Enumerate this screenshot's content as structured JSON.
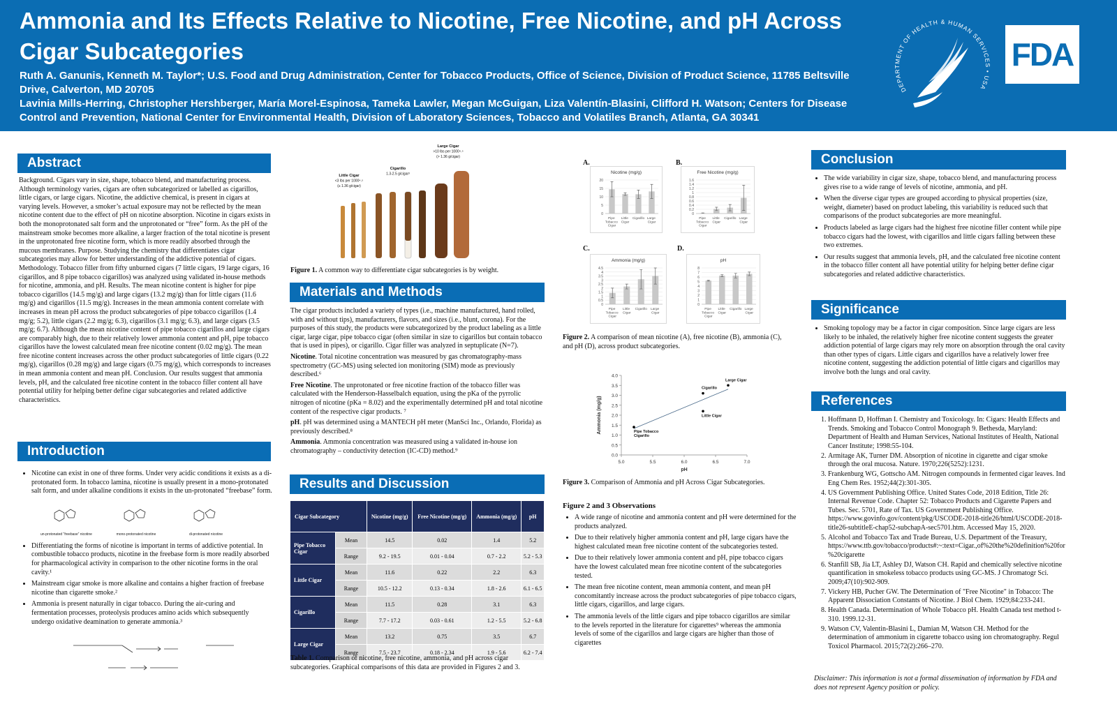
{
  "header": {
    "title": "Ammonia and Its Effects Relative to Nicotine, Free Nicotine, and pH Across Cigar Subcategories",
    "authors": [
      "Ruth A. Ganunis, Kenneth M. Taylor*; U.S. Food and Drug Administration, Center for Tobacco Products, Office of Science, Division of Product Science, 11785 Beltsville Drive, Calverton, MD 20705",
      "Lavinia Mills-Herring, Christopher Hershberger, María Morel-Espinosa, Tameka Lawler, Megan McGuigan, Liza Valentín-Blasini, Clifford H. Watson; Centers for Disease Control and Prevention, National Center for Environmental Health, Division of Laboratory Sciences, Tobacco and Volatiles Branch, Atlanta, GA 30341"
    ],
    "seal_text": "DEPARTMENT OF HEALTH & HUMAN SERVICES • USA",
    "logo_text": "FDA"
  },
  "abstract": {
    "heading": "Abstract",
    "text": "Background. Cigars vary in size, shape, tobacco blend, and manufacturing process. Although terminology varies, cigars are often subcategorized or labelled as cigarillos, little cigars, or large cigars. Nicotine, the addictive chemical, is present in cigars at varying levels. However, a smoker’s actual exposure may not be reflected by the mean nicotine content due to the effect of pH on nicotine absorption. Nicotine in cigars exists in both the monoprotonated salt form and the unprotonated or “free” form. As the pH of the mainstream smoke becomes more alkaline, a larger fraction of the total nicotine is present in the unprotonated free nicotine form, which is more readily absorbed through the mucous membranes. Purpose. Studying the chemistry that differentiates cigar subcategories may allow for better understanding of the addictive potential of cigars. Methodology. Tobacco filler from fifty unburned cigars (7 little cigars, 19 large cigars, 16 cigarillos, and 8 pipe tobacco cigarillos) was analyzed using validated in-house methods for nicotine, ammonia, and pH. Results. The mean nicotine content is higher for pipe tobacco cigarillos (14.5 mg/g) and large cigars (13.2 mg/g) than for little cigars (11.6 mg/g) and cigarillos (11.5 mg/g). Increases in the mean ammonia content correlate with increases in mean pH across the product subcategories of pipe tobacco cigarillos (1.4 mg/g; 5.2), little cigars (2.2 mg/g; 6.3), cigarillos (3.1 mg/g; 6.3), and large cigars (3.5 mg/g; 6.7). Although the mean nicotine content of pipe tobacco cigarillos and large cigars are comparably high, due to their relatively lower ammonia content and pH, pipe tobacco cigarillos have the lowest calculated mean free nicotine content (0.02 mg/g). The mean free nicotine content increases across the other product subcategories of little cigars (0.22 mg/g), cigarillos (0.28 mg/g) and large cigars (0.75 mg/g), which corresponds to increases in mean ammonia content and mean pH. Conclusion. Our results suggest that ammonia levels, pH, and the calculated free nicotine content in the tobacco filler content all have potential utility for helping better define cigar subcategories and related addictive characteristics."
  },
  "introduction": {
    "heading": "Introduction",
    "bullets": [
      "Nicotine can exist in one of three forms. Under very acidic conditions it exists as a di-protonated form. In tobacco lamina, nicotine is usually present in a mono-protonated salt form, and under alkaline conditions it exists in the un-protonated “freebase” form.",
      "Differentiating the forms of nicotine is important in terms of addictive potential. In combustible tobacco products, nicotine in the freebase form is more readily absorbed for pharmacological activity in comparison to the other nicotine forms in the oral cavity.¹",
      "Mainstream cigar smoke is more alkaline and contains a higher fraction of freebase nicotine than cigarette smoke.²",
      "Ammonia is present naturally in cigar tobacco.  During the air-curing and fermentation processes, proteolysis produces amino acids which subsequently undergo oxidative deamination to generate ammonia.³"
    ],
    "forms": [
      "un-protonated “freebase” nicotine",
      "mono-protonated nicotine",
      "di-protonated nicotine"
    ]
  },
  "figure1": {
    "labels": [
      [
        "Little Cigar",
        "<3 lbs per 1000⁴˒⁵",
        "(≤ 1.36 g/cigar)"
      ],
      [
        "Cigarillo",
        "1.3-2.5 g/cigar³"
      ],
      [
        "Large Cigar",
        ">10 lbs per 1000⁴˒⁵",
        "(> 1.36 g/cigar)"
      ]
    ],
    "caption_label": "Figure 1.",
    "caption": "A common way to differentiate cigar subcategories is by weight."
  },
  "methods": {
    "heading": "Materials and Methods",
    "intro": "The cigar products included a variety of types (i.e., machine manufactured, hand rolled, with and without tips), manufacturers, flavors, and sizes (i.e., blunt, corona). For the purposes of this study, the products were subcategorized by the product labeling as a little cigar, large cigar, pipe tobacco cigar (often similar in size to cigarillos but contain tobacco that is used in pipes), or cigarillo. Cigar filler was analyzed in septuplicate (N=7).",
    "paragraphs": [
      {
        "lead": "Nicotine",
        "text": ". Total nicotine concentration was measured by gas chromatography-mass spectrometry (GC-MS) using selected ion monitoring (SIM) mode as previously described.⁶"
      },
      {
        "lead": "Free Nicotine",
        "text": ". The unprotonated or free nicotine fraction of the tobacco filler was calculated with the Henderson-Hasselbalch equation, using the pKa of the pyrrolic nitrogen of nicotine (pKa = 8.02) and the experimentally determined pH and total nicotine content of the respective cigar products. ⁷"
      },
      {
        "lead": "pH",
        "text": ". pH was determined using a MANTECH pH meter (ManSci Inc., Orlando, Florida) as previously described.⁸"
      },
      {
        "lead": "Ammonia",
        "text": ". Ammonia concentration was measured using a validated in-house ion chromatography – conductivity detection (IC-CD) method.⁹"
      }
    ]
  },
  "results": {
    "heading": "Results and Discussion",
    "table": {
      "columns": [
        "Cigar Subcategory",
        "Nicotine (mg/g)",
        "Free Nicotine (mg/g)",
        "Ammonia (mg/g)",
        "pH"
      ],
      "groups": [
        {
          "name": "Pipe Tobacco Cigar",
          "rows": [
            {
              "stat": "Mean",
              "values": [
                14.5,
                0.02,
                1.4,
                5.2
              ]
            },
            {
              "stat": "Range",
              "values": [
                "9.2 - 19.5",
                "0.01 - 0.04",
                "0.7 - 2.2",
                "5.2 - 5.3"
              ]
            }
          ]
        },
        {
          "name": "Little Cigar",
          "rows": [
            {
              "stat": "Mean",
              "values": [
                11.6,
                0.22,
                2.2,
                6.3
              ]
            },
            {
              "stat": "Range",
              "values": [
                "10.5 - 12.2",
                "0.13 - 0.34",
                "1.8 - 2.6",
                "6.1 - 6.5"
              ]
            }
          ]
        },
        {
          "name": "Cigarillo",
          "rows": [
            {
              "stat": "Mean",
              "values": [
                11.5,
                0.28,
                3.1,
                6.3
              ]
            },
            {
              "stat": "Range",
              "values": [
                "7.7 - 17.2",
                "0.03 - 0.61",
                "1.2 - 5.5",
                "5.2 - 6.8"
              ]
            }
          ]
        },
        {
          "name": "Large Cigar",
          "rows": [
            {
              "stat": "Mean",
              "values": [
                13.2,
                0.75,
                3.5,
                6.7
              ]
            },
            {
              "stat": "Range",
              "values": [
                "7.5 - 23.7",
                "0.18 - 2.34",
                "1.9 - 5.6",
                "6.2 - 7.4"
              ]
            }
          ]
        }
      ]
    },
    "caption_label": "Table 1.",
    "caption": "Comparison of nicotine, free nicotine, ammonia, and pH across cigar subcategories. Graphical comparisons of this data are provided in Figures 2 and 3."
  },
  "figure2": {
    "panels": [
      {
        "letter": "A.",
        "chart": {
          "type": "bar",
          "title": "Nicotine (mg/g)",
          "categories": [
            "Pipe Tobacco Cigar",
            "Little Cigar",
            "Cigarillo",
            "Large Cigar"
          ],
          "values": [
            14.5,
            11.6,
            11.5,
            13.2
          ],
          "errors": [
            4.5,
            0.8,
            2.5,
            4.2
          ],
          "ylim": [
            0,
            20
          ],
          "yticks": [
            0,
            5,
            10,
            15,
            20
          ],
          "color": "#c8c8c8"
        }
      },
      {
        "letter": "B.",
        "chart": {
          "type": "bar",
          "title": "Free Nicotine (mg/g)",
          "categories": [
            "Pipe Tobacco Cigar",
            "Little Cigar",
            "Cigarillo",
            "Large Cigar"
          ],
          "values": [
            0.02,
            0.22,
            0.28,
            0.75
          ],
          "errors": [
            0.01,
            0.08,
            0.15,
            0.6
          ],
          "ylim": [
            0,
            1.6
          ],
          "yticks": [
            0,
            0.2,
            0.4,
            0.6,
            0.8,
            1,
            1.2,
            1.4,
            1.6
          ],
          "color": "#c8c8c8"
        }
      },
      {
        "letter": "C.",
        "chart": {
          "type": "bar",
          "title": "Ammonia (mg/g)",
          "categories": [
            "Pipe Tobacco Cigar",
            "Little Cigar",
            "Cigarillo",
            "Large Cigar"
          ],
          "values": [
            1.4,
            2.2,
            3.1,
            3.5
          ],
          "errors": [
            0.6,
            0.3,
            1.2,
            1.0
          ],
          "ylim": [
            0,
            4.5
          ],
          "yticks": [
            0,
            0.5,
            1,
            1.5,
            2,
            2.5,
            3,
            3.5,
            4,
            4.5
          ],
          "color": "#c8c8c8"
        }
      },
      {
        "letter": "D.",
        "chart": {
          "type": "bar",
          "title": "pH",
          "categories": [
            "Pipe Tobacco Cigar",
            "Little Cigar",
            "Cigarillo",
            "Large Cigar"
          ],
          "values": [
            5.2,
            6.3,
            6.3,
            6.7
          ],
          "errors": [
            0.1,
            0.2,
            0.5,
            0.4
          ],
          "ylim": [
            0,
            8
          ],
          "yticks": [
            0,
            1,
            2,
            3,
            4,
            5,
            6,
            7,
            8
          ],
          "color": "#c8c8c8"
        }
      }
    ],
    "caption_label": "Figure 2.",
    "caption": "A comparison of mean nicotine (A), free nicotine (B), ammonia (C), and pH (D), across product subcategories."
  },
  "figure3": {
    "chart": {
      "type": "scatter",
      "x_label": "pH",
      "y_label": "Ammonia (mg/g)",
      "points": [
        {
          "name": "Pipe Tobacco Cigarillo",
          "x": 5.2,
          "y": 1.4
        },
        {
          "name": "Cigarillo",
          "x": 6.3,
          "y": 3.1
        },
        {
          "name": "Little Cigar",
          "x": 6.3,
          "y": 2.2
        },
        {
          "name": "Large Cigar",
          "x": 6.7,
          "y": 3.5
        }
      ],
      "xlim": [
        5.0,
        7.0
      ],
      "xticks": [
        {
          "value": 5,
          "label": "5.0"
        },
        {
          "value": 5.5,
          "label": "5.5"
        },
        {
          "value": 6,
          "label": "6.0"
        },
        {
          "value": 6.5,
          "label": "6.5"
        },
        {
          "value": 7,
          "label": "7.0"
        }
      ],
      "ylim": [
        0,
        4.0
      ],
      "yticks": [
        {
          "value": 0,
          "label": "0.0"
        },
        {
          "value": 0.5,
          "label": "0.5"
        },
        {
          "value": 1,
          "label": "1.0"
        },
        {
          "value": 1.5,
          "label": "1.5"
        },
        {
          "value": 2,
          "label": "2.0"
        },
        {
          "value": 2.5,
          "label": "2.5"
        },
        {
          "value": 3,
          "label": "3.0"
        },
        {
          "value": 3.5,
          "label": "3.5"
        },
        {
          "value": 4,
          "label": "4.0"
        }
      ],
      "trendline": true,
      "color": "#000000"
    },
    "caption_label": "Figure 3.",
    "caption": "Comparison of Ammonia and pH Across Cigar Subcategories."
  },
  "observations": {
    "heading": "Figure 2 and 3 Observations",
    "bullets": [
      "A wide range of nicotine and ammonia content and pH were determined for the products analyzed.",
      "Due to their relatively higher ammonia content and pH, large cigars have the highest calculated mean free nicotine content of the subcategories tested.",
      "Due to their relatively lower ammonia content and pH, pipe tobacco cigars have the lowest calculated mean free nicotine content of the subcategories tested.",
      "The mean free nicotine content, mean ammonia content, and mean pH concomitantly increase across the product subcategories of pipe tobacco cigars, little cigars, cigarillos, and large cigars.",
      "The ammonia levels of the little cigars and pipe tobacco cigarillos are similar to the levels reported in the literature for cigarettes⁹ whereas the ammonia levels of some of the cigarillos and large cigars are higher than those of cigarettes"
    ]
  },
  "conclusion": {
    "heading": "Conclusion",
    "bullets": [
      "The wide variability in cigar size, shape, tobacco blend, and manufacturing process gives rise to a wide range of levels of nicotine, ammonia, and pH.",
      "When the diverse cigar types are grouped according to physical properties (size, weight, diameter) based on product labeling, this variability is reduced such that comparisons of the product subcategories are more meaningful.",
      "Products labeled as large cigars had the highest free nicotine filler content while pipe tobacco cigars had the lowest, with cigarillos and little cigars falling between these two extremes.",
      "Our results suggest that ammonia levels, pH, and the calculated free nicotine content in the tobacco filler content all have potential utility for helping better define cigar subcategories and related addictive characteristics."
    ]
  },
  "significance": {
    "heading": "Significance",
    "bullets": [
      "Smoking topology may be a factor in cigar composition. Since large cigars are less likely to be inhaled, the relatively higher free nicotine content suggests the greater addiction potential of large cigars may rely more on absorption through the oral cavity than other types of cigars. Little cigars and cigarillos have a relatively lower free nicotine content, suggesting the addiction potential of little cigars and cigarillos may involve both the lungs and oral cavity."
    ]
  },
  "references": {
    "heading": "References",
    "items": [
      "Hoffmann D, Hoffman I. Chemistry and Toxicology. In: Cigars: Health Effects and Trends. Smoking and Tobacco Control Monograph 9. Bethesda, Maryland: Department of Health and Human Services, National Institutes of Health, National Cancer Institute; 1998:55-104.",
      "Armitage AK, Turner DM. Absorption of nicotine in cigarette and cigar smoke through the oral mucosa. Nature. 1970;226(5252):1231.",
      "Frankenburg WG, Gottscho AM. Nitrogen compounds in fermented cigar leaves. Ind Eng Chem Res. 1952;44(2):301-305.",
      "US Government Publishing Office. United States Code, 2018 Edition, Title 26: Internal Revenue Code. Chapter 52: Tobacco Products and Cigarette Papers and Tubes. Sec. 5701, Rate of Tax. US Government Publishing Office. https://www.govinfo.gov/content/pkg/USCODE-2018-title26/html/USCODE-2018-title26-subtitleE-chap52-subchapA-sec5701.htm. Accessed May 15, 2020.",
      "Alcohol and Tobacco Tax and Trade Bureau, U.S. Department of the Treasury, https://www.ttb.gov/tobacco/products#:~:text=Cigar.,of%20the%20definition%20for%20cigarette",
      "Stanfill SB, Jia LT, Ashley DJ, Watson CH. Rapid and chemically selective nicotine quantification in smokeless tobacco products using GC-MS. J Chromatogr Sci. 2009;47(10):902-909.",
      "Vickery HB, Pucher GW. The Determination of \"Free Nicotine\" in Tobacco: The Apparent Dissociation Constants of Nicotine. J Biol Chem. 1929;84:233-241.",
      "Health Canada. Determination of Whole Tobacco pH.  Health Canada test method t-310. 1999.12-31.",
      "Watson CV, Valentin-Blasini L, Damian M, Watson CH. Method for the determination of ammonium in cigarette tobacco using ion chromatography. Regul Toxicol Pharmacol. 2015;72(2):266–270."
    ]
  },
  "disclaimer": "Disclaimer: This information is not a formal dissemination of information by FDA and does not represent Agency position or policy."
}
